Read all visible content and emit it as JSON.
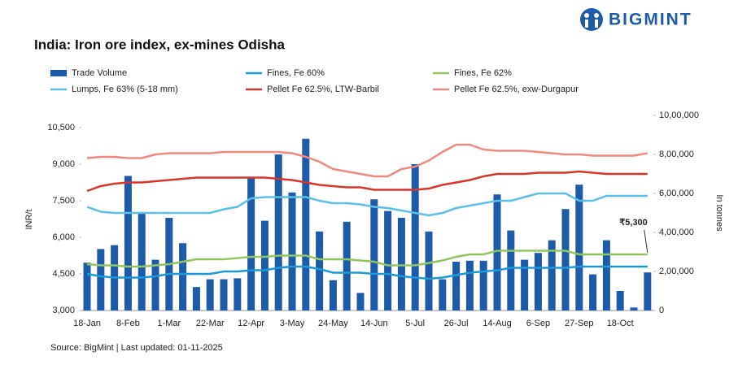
{
  "chart_data": {
    "type": "combo",
    "brand": "BIGMINT",
    "title": "India: Iron ore index, ex-mines Odisha",
    "source": "Source: BigMint | Last updated: 01-11-2025",
    "y_label": "INR/t",
    "y2_label": "In tonnes",
    "categories": [
      "18-Jan",
      null,
      null,
      "8-Feb",
      null,
      null,
      "1-Mar",
      null,
      null,
      "22-Mar",
      null,
      null,
      "12-Apr",
      null,
      null,
      "3-May",
      null,
      null,
      "24-May",
      null,
      null,
      "14-Jun",
      null,
      null,
      "5-Jul",
      null,
      null,
      "26-Jul",
      null,
      null,
      "14-Aug",
      null,
      null,
      "6-Sep",
      null,
      null,
      "27-Sep",
      null,
      null,
      "18-Oct",
      null,
      null
    ],
    "ylim": [
      3000,
      10500
    ],
    "yticks": [
      {
        "value": 3000,
        "label": "3,000"
      },
      {
        "value": 4500,
        "label": "4,500"
      },
      {
        "value": 6000,
        "label": "6,000"
      },
      {
        "value": 7500,
        "label": "7,500"
      },
      {
        "value": 9000,
        "label": "9,000"
      },
      {
        "value": 10500,
        "label": "10,500"
      }
    ],
    "y2lim": [
      0,
      1000000
    ],
    "y2ticks": [
      0,
      {
        "value": 200000,
        "label": "2,00,000"
      },
      {
        "value": 400000,
        "label": "4,00,000"
      },
      {
        "value": 600000,
        "label": "6,00,000"
      },
      {
        "value": 800000,
        "label": "8,00,000"
      },
      {
        "value": 1000000,
        "label": "10,00,000"
      }
    ],
    "series": [
      {
        "name": "Trade Volume",
        "type": "bar",
        "axis": "y2",
        "color": "#1f5aa6",
        "values": [
          245000,
          315000,
          335000,
          690000,
          500000,
          260000,
          475000,
          345000,
          120000,
          160000,
          160000,
          165000,
          685000,
          460000,
          800000,
          605000,
          880000,
          405000,
          155000,
          455000,
          90000,
          570000,
          510000,
          475000,
          750000,
          405000,
          160000,
          250000,
          255000,
          255000,
          595000,
          410000,
          260000,
          295000,
          360000,
          520000,
          645000,
          185000,
          360000,
          100000,
          15000,
          195000
        ]
      },
      {
        "name": "Fines, Fe 60%",
        "type": "line",
        "color": "#1b9ad6",
        "values": [
          4500,
          4400,
          4350,
          4350,
          4350,
          4400,
          4500,
          4500,
          4500,
          4500,
          4600,
          4600,
          4650,
          4650,
          4750,
          4800,
          4800,
          4700,
          4550,
          4550,
          4550,
          4500,
          4500,
          4400,
          4350,
          4300,
          4350,
          4450,
          4550,
          4600,
          4650,
          4750,
          4750,
          4750,
          4750,
          4750,
          4800,
          4800,
          4800,
          4800,
          4800,
          4800
        ]
      },
      {
        "name": "Fines, Fe 62%",
        "type": "line",
        "color": "#92c560",
        "values": [
          4900,
          4850,
          4850,
          4800,
          4800,
          4850,
          4900,
          5000,
          5100,
          5100,
          5100,
          5150,
          5200,
          5200,
          5250,
          5250,
          5250,
          5100,
          5100,
          5100,
          5050,
          5000,
          4850,
          4850,
          4850,
          4950,
          5050,
          5200,
          5300,
          5300,
          5450,
          5450,
          5450,
          5450,
          5450,
          5450,
          5300,
          5300,
          5300,
          5300,
          5300,
          5300
        ]
      },
      {
        "name": "Lumps, Fe 63% (5-18 mm)",
        "type": "line",
        "color": "#5bc0e8",
        "values": [
          7250,
          7050,
          7000,
          7000,
          7000,
          7000,
          7000,
          7000,
          7000,
          7000,
          7150,
          7250,
          7600,
          7650,
          7650,
          7650,
          7650,
          7500,
          7400,
          7400,
          7350,
          7250,
          7200,
          7100,
          7000,
          6900,
          7000,
          7200,
          7300,
          7400,
          7500,
          7500,
          7650,
          7800,
          7800,
          7800,
          7500,
          7500,
          7700,
          7700,
          7700,
          7700
        ]
      },
      {
        "name": "Pellet Fe 62.5%, LTW-Barbil",
        "type": "line",
        "color": "#d9362b",
        "values": [
          7900,
          8100,
          8200,
          8250,
          8250,
          8300,
          8350,
          8400,
          8450,
          8450,
          8450,
          8450,
          8450,
          8450,
          8400,
          8350,
          8250,
          8150,
          8100,
          8050,
          8050,
          7950,
          7950,
          7950,
          7950,
          8000,
          8150,
          8250,
          8350,
          8500,
          8600,
          8600,
          8600,
          8650,
          8650,
          8650,
          8700,
          8650,
          8600,
          8600,
          8600,
          8600
        ]
      },
      {
        "name": "Pellet Fe  62.5%, exw-Durgapur",
        "type": "line",
        "color": "#ee8a80",
        "values": [
          9250,
          9300,
          9300,
          9250,
          9250,
          9400,
          9450,
          9450,
          9450,
          9450,
          9500,
          9500,
          9500,
          9500,
          9500,
          9450,
          9300,
          9100,
          8800,
          8700,
          8600,
          8500,
          8500,
          8800,
          8900,
          9150,
          9500,
          9800,
          9800,
          9600,
          9550,
          9550,
          9550,
          9500,
          9450,
          9400,
          9400,
          9350,
          9350,
          9350,
          9350,
          9450
        ]
      }
    ],
    "annotation": {
      "text": "₹5,300",
      "series": 2,
      "index": 41
    }
  }
}
